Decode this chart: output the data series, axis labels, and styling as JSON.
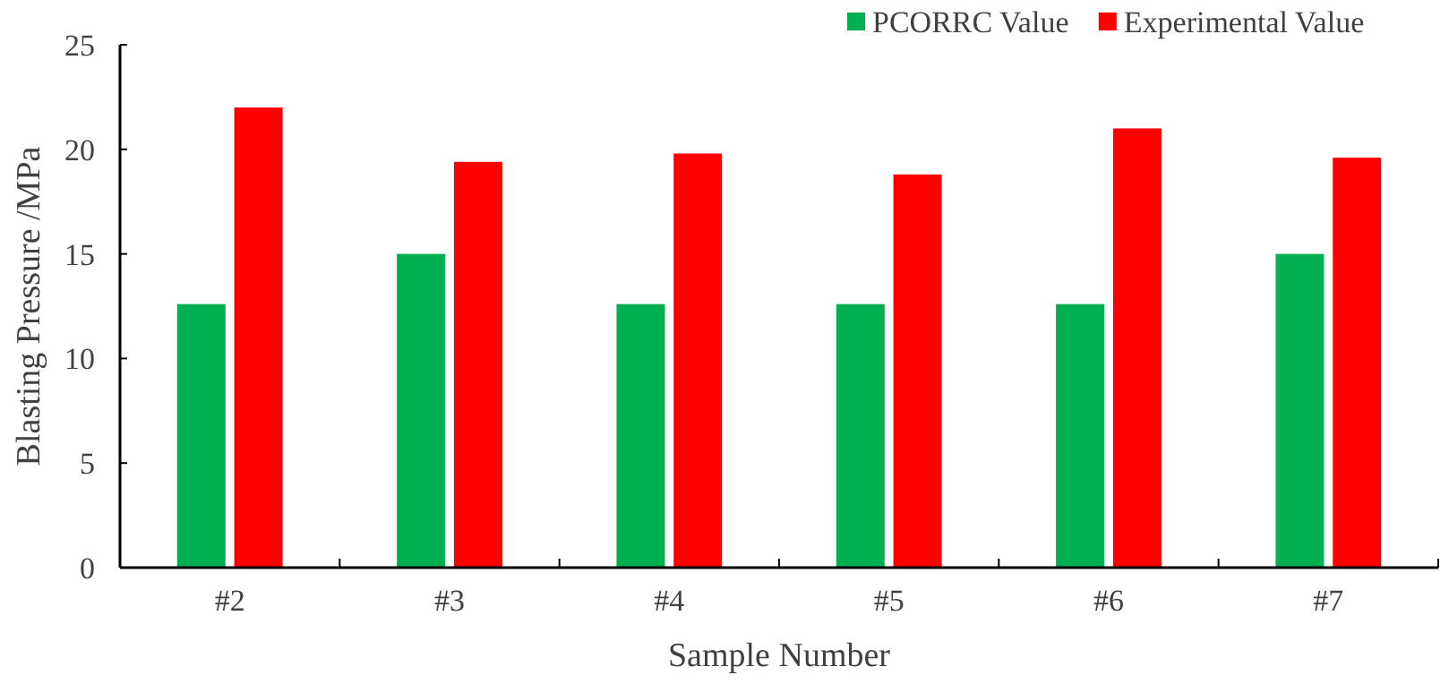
{
  "chart_data": {
    "type": "bar",
    "xlabel": "Sample Number",
    "ylabel": "Blasting Pressure  /MPa",
    "categories": [
      "#2",
      "#3",
      "#4",
      "#5",
      "#6",
      "#7"
    ],
    "series": [
      {
        "name": "PCORRC Value",
        "color": "#00b050",
        "values": [
          12.6,
          15.0,
          12.6,
          12.6,
          12.6,
          15.0
        ]
      },
      {
        "name": "Experimental Value",
        "color": "#ff0000",
        "values": [
          22.0,
          19.4,
          19.8,
          18.8,
          21.0,
          19.6
        ]
      }
    ],
    "ylim": [
      0,
      25
    ],
    "yticks": [
      0,
      5,
      10,
      15,
      20,
      25
    ],
    "grid": false,
    "legend": "top right"
  }
}
